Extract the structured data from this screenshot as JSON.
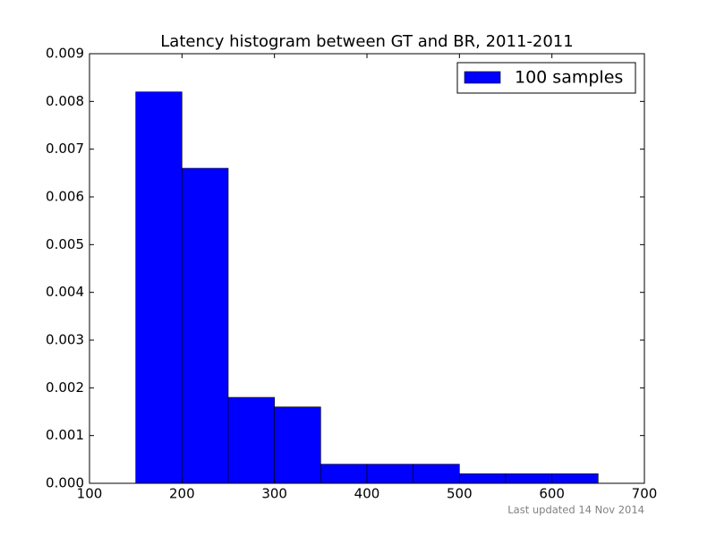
{
  "chart_data": {
    "type": "histogram",
    "title": "Latency histogram between GT and BR, 2011-2011",
    "bins": [
      150,
      200,
      250,
      300,
      350,
      400,
      450,
      500,
      550,
      600,
      650
    ],
    "series": [
      {
        "name": "100 samples",
        "color": "#0000ff",
        "values": [
          0.0082,
          0.0066,
          0.0018,
          0.0016,
          0.0004,
          0.0004,
          0.0004,
          0.0002,
          0.0002,
          0.0002
        ]
      }
    ],
    "xlim": [
      100,
      700
    ],
    "xticks": [
      100,
      200,
      300,
      400,
      500,
      600,
      700
    ],
    "ylim": [
      0,
      0.009
    ],
    "yticks": [
      {
        "value": 0,
        "label": "0.000"
      },
      {
        "value": 0.001,
        "label": "0.001"
      },
      {
        "value": 0.002,
        "label": "0.002"
      },
      {
        "value": 0.003,
        "label": "0.003"
      },
      {
        "value": 0.004,
        "label": "0.004"
      },
      {
        "value": 0.005,
        "label": "0.005"
      },
      {
        "value": 0.006,
        "label": "0.006"
      },
      {
        "value": 0.007,
        "label": "0.007"
      },
      {
        "value": 0.008,
        "label": "0.008"
      },
      {
        "value": 0.009,
        "label": "0.009"
      }
    ],
    "legend": "upper right",
    "annotation": "Last updated 14 Nov 2014"
  }
}
